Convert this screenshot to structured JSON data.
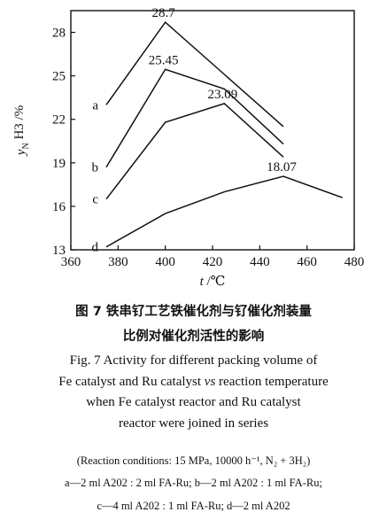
{
  "chart_data": {
    "type": "line",
    "xlabel": "t /℃",
    "ylabel": "y_NH3 /%",
    "xlim": [
      360,
      480
    ],
    "ylim": [
      13,
      29.5
    ],
    "xticks": [
      360,
      380,
      400,
      420,
      440,
      460,
      480
    ],
    "yticks": [
      13,
      16,
      19,
      22,
      25,
      28
    ],
    "grid": false,
    "legend": "none",
    "series": [
      {
        "name": "a",
        "x": [
          375,
          400,
          425,
          450
        ],
        "y": [
          23.0,
          28.7,
          25.1,
          21.5
        ]
      },
      {
        "name": "b",
        "x": [
          375,
          400,
          425,
          450
        ],
        "y": [
          18.7,
          25.45,
          24.1,
          20.3
        ]
      },
      {
        "name": "c",
        "x": [
          375,
          400,
          425,
          450
        ],
        "y": [
          16.5,
          21.8,
          23.09,
          19.4
        ]
      },
      {
        "name": "d",
        "x": [
          375,
          400,
          425,
          450,
          475
        ],
        "y": [
          13.2,
          15.5,
          17.0,
          18.07,
          16.6
        ]
      }
    ],
    "peak_labels": [
      {
        "series": "a",
        "text": "28.7"
      },
      {
        "series": "b",
        "text": "25.45"
      },
      {
        "series": "c",
        "text": "23.09"
      },
      {
        "series": "d",
        "text": "18.07"
      }
    ],
    "line_color": "#111111"
  },
  "caption": {
    "cn_line1": "图 7   铁串钌工艺铁催化剂与钌催化剂装量",
    "cn_line2": "比例对催化剂活性的影响",
    "en_lines": [
      "Fig. 7   Activity for different packing volume of",
      "Fe catalyst and Ru catalyst vs reaction temperature",
      "when Fe catalyst reactor and Ru catalyst",
      "reactor were joined in series"
    ],
    "conditions": "(Reaction conditions: 15 MPa, 10000 h⁻¹, N₂ + 3H₂)",
    "notes_line1": "a—2 ml A202 : 2 ml FA-Ru; b—2 ml A202 : 1 ml FA-Ru;",
    "notes_line2": "c—4 ml A202 : 1 ml FA-Ru;  d—2 ml A202"
  }
}
